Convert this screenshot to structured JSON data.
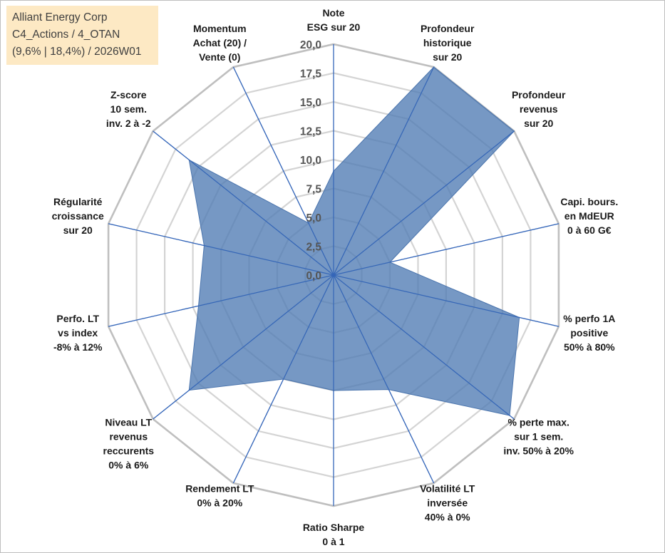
{
  "info": {
    "line1": "Alliant Energy Corp",
    "line2": "C4_Actions / 4_OTAN",
    "line3": "(9,6% | 18,4%) / 2026W01"
  },
  "chart_data": {
    "type": "radar",
    "title": "Alliant Energy Corp",
    "r_min": 0,
    "r_max": 20,
    "ticks": [
      "0,0",
      "2,5",
      "5,0",
      "7,5",
      "10,0",
      "12,5",
      "15,0",
      "17,5",
      "20,0"
    ],
    "tick_values": [
      0,
      2.5,
      5,
      7.5,
      10,
      12.5,
      15,
      17.5,
      20
    ],
    "axes": [
      {
        "label": [
          "Note",
          "ESG sur 20"
        ]
      },
      {
        "label": [
          "Profondeur",
          "historique",
          "sur 20"
        ]
      },
      {
        "label": [
          "Profondeur",
          "revenus",
          "sur 20"
        ]
      },
      {
        "label": [
          "Capi. bours.",
          "en MdEUR",
          "0 à 60 G€"
        ]
      },
      {
        "label": [
          "% perfo 1A",
          "positive",
          "50% à 80%"
        ]
      },
      {
        "label": [
          "% perte max.",
          "sur 1 sem.",
          "inv. 50% à 20%"
        ]
      },
      {
        "label": [
          "Volatilité LT",
          "inversée",
          "40% à 0%"
        ]
      },
      {
        "label": [
          "Ratio Sharpe",
          "0 à 1"
        ]
      },
      {
        "label": [
          "Rendement LT",
          "0% à 20%"
        ]
      },
      {
        "label": [
          "Niveau LT",
          "revenus",
          "reccurents",
          "0% à 6%"
        ]
      },
      {
        "label": [
          "Perfo. LT",
          "vs index",
          "-8% à 12%"
        ]
      },
      {
        "label": [
          "Régularité",
          "croissance",
          "sur 20"
        ]
      },
      {
        "label": [
          "Z-score",
          "10 sem.",
          "inv. 2 à -2"
        ]
      },
      {
        "label": [
          "Momentum",
          "Achat (20) /",
          "Vente (0)"
        ]
      }
    ],
    "series": [
      {
        "name": "Alliant Energy Corp",
        "color": "#4f7bb3",
        "values": [
          9.0,
          20.0,
          20.0,
          5.0,
          16.5,
          19.5,
          11.0,
          10.0,
          10.0,
          16.0,
          12.0,
          11.5,
          16.0,
          5.0
        ]
      }
    ]
  }
}
